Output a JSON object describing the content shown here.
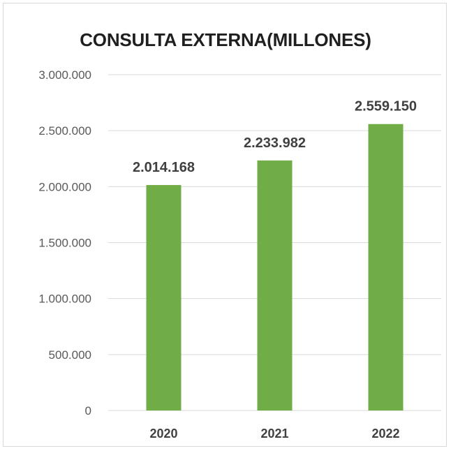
{
  "chart_data": {
    "type": "bar",
    "title": "CONSULTA EXTERNA(MILLONES)",
    "xlabel": "",
    "ylabel": "",
    "categories": [
      "2020",
      "2021",
      "2022"
    ],
    "values": [
      2014168,
      2233982,
      2559150
    ],
    "data_labels": [
      "2.014.168",
      "2.233.982",
      "2.559.150"
    ],
    "ylim": [
      0,
      3000000
    ],
    "y_ticks": [
      0,
      500000,
      1000000,
      1500000,
      2000000,
      2500000,
      3000000
    ],
    "y_tick_labels": [
      "0",
      "500.000",
      "1.000.000",
      "1.500.000",
      "2.000.000",
      "2.500.000",
      "3.000.000"
    ],
    "grid": true,
    "legend": "none",
    "bar_color": "#70ad47",
    "grid_color": "#d9d9d9"
  }
}
